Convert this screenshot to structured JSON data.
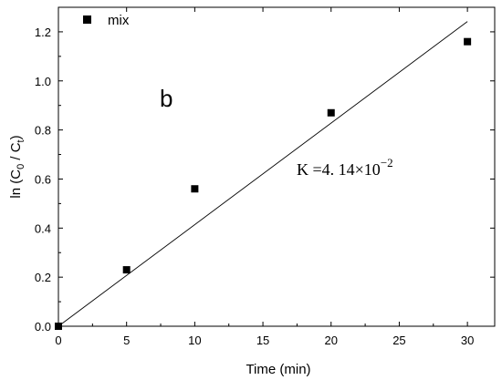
{
  "chart_data": {
    "type": "scatter",
    "x": [
      0,
      5,
      10,
      20,
      30
    ],
    "series": [
      {
        "name": "mix",
        "marker": "square",
        "values": [
          0.0,
          0.23,
          0.56,
          0.87,
          1.16
        ]
      }
    ],
    "fit_line": {
      "slope": 0.0414,
      "intercept": 0.0,
      "x_range": [
        0,
        30
      ]
    },
    "xlabel": "Time (min)",
    "ylabel_parts": {
      "prefix": "ln (C",
      "sub1": "0",
      "mid": " / C",
      "sub2": "t",
      "suffix": ")"
    },
    "xlim": [
      0,
      32
    ],
    "ylim": [
      0,
      1.3
    ],
    "xticks": [
      0,
      5,
      10,
      15,
      20,
      25,
      30
    ],
    "yticks": [
      0.0,
      0.2,
      0.4,
      0.6,
      0.8,
      1.0,
      1.2
    ],
    "ytick_labels": [
      "0.0",
      "0.2",
      "0.4",
      "0.6",
      "0.8",
      "1.0",
      "1.2"
    ],
    "legend": {
      "label": "mix",
      "position": "top-left"
    },
    "panel_label": "b",
    "annotation": {
      "prefix": "K =4. 14×10",
      "superscript": "−2"
    },
    "grid": false,
    "colors": {
      "marker": "#000000",
      "line": "#000000",
      "axes": "#000000"
    }
  }
}
